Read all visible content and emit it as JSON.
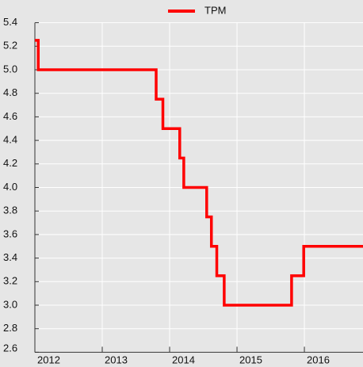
{
  "chart_data": {
    "type": "line",
    "step": "post",
    "x": [
      2012.0,
      2012.05,
      2013.8,
      2013.9,
      2014.15,
      2014.21,
      2014.55,
      2014.62,
      2014.7,
      2014.81,
      2015.81,
      2015.99,
      2016.87
    ],
    "series": [
      {
        "name": "TPM",
        "color": "#ff0000",
        "values": [
          5.25,
          5,
          4.75,
          4.5,
          4.25,
          4,
          3.75,
          3.5,
          3.25,
          3,
          3.25,
          3.5,
          3.5
        ]
      }
    ],
    "xlim": [
      2012,
      2016.87
    ],
    "xticks": [
      2012,
      2013,
      2014,
      2015,
      2016
    ],
    "ylim": [
      2.6,
      5.4
    ],
    "yticks": [
      2.6,
      2.8,
      {
        "value": 3,
        "label": "3.0"
      },
      3.2,
      3.4,
      3.6,
      3.8,
      {
        "value": 4,
        "label": "4.0"
      },
      4.2,
      4.4,
      4.6,
      4.8,
      {
        "value": 5,
        "label": "5.0"
      },
      5.2,
      5.4
    ],
    "grid": true,
    "legend": "top"
  }
}
